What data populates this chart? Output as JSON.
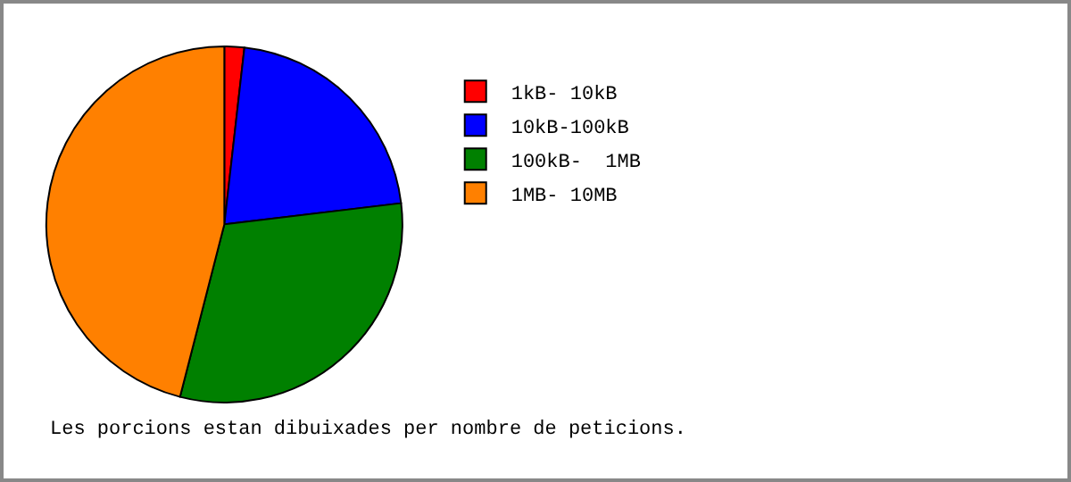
{
  "chart_data": {
    "type": "pie",
    "categories": [
      "1kB- 10kB",
      "10kB-100kB",
      "100kB-  1MB",
      "1MB- 10MB"
    ],
    "values": [
      1.8,
      21.3,
      30.9,
      46.0
    ],
    "colors": [
      "#ff0000",
      "#0000ff",
      "#008000",
      "#ff8000"
    ],
    "legend": "top right",
    "annotations": [
      "Les porcions estan dibuixades per nombre de peticions."
    ]
  }
}
